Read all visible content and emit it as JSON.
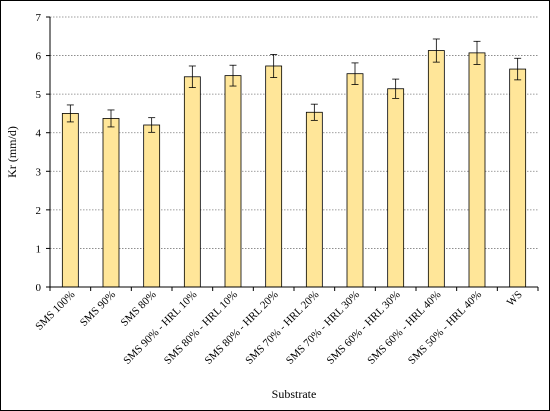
{
  "chart_data": {
    "type": "bar",
    "xlabel": "Substrate",
    "ylabel": "Kr (mm/d)",
    "ylim": [
      0,
      7
    ],
    "yticks": [
      "0",
      "1",
      "2",
      "3",
      "4",
      "5",
      "6",
      "7"
    ],
    "grid": "horizontal dotted",
    "legend": "none",
    "categories": [
      "SMS 100%",
      "SMS 90%",
      "SMS 80%",
      "SMS 90% - HRL 10%",
      "SMS 80% - HRL 10%",
      "SMS 80% - HRL 20%",
      "SMS 70% - HRL 20%",
      "SMS 70% - HRL 30%",
      "SMS 60% - HRL 30%",
      "SMS 60% - HRL 40%",
      "SMS 50% - HRL 40%",
      "WS"
    ],
    "values": [
      4.5,
      4.37,
      4.2,
      5.45,
      5.48,
      5.73,
      4.53,
      5.53,
      5.14,
      6.13,
      6.07,
      5.65
    ],
    "errors": [
      0.22,
      0.22,
      0.19,
      0.28,
      0.27,
      0.3,
      0.21,
      0.28,
      0.25,
      0.3,
      0.3,
      0.28
    ],
    "colors": {
      "bar_fill": "#FFE699",
      "bar_stroke": "#000000",
      "grid": "#7f7f7f",
      "axis": "#000000"
    }
  }
}
